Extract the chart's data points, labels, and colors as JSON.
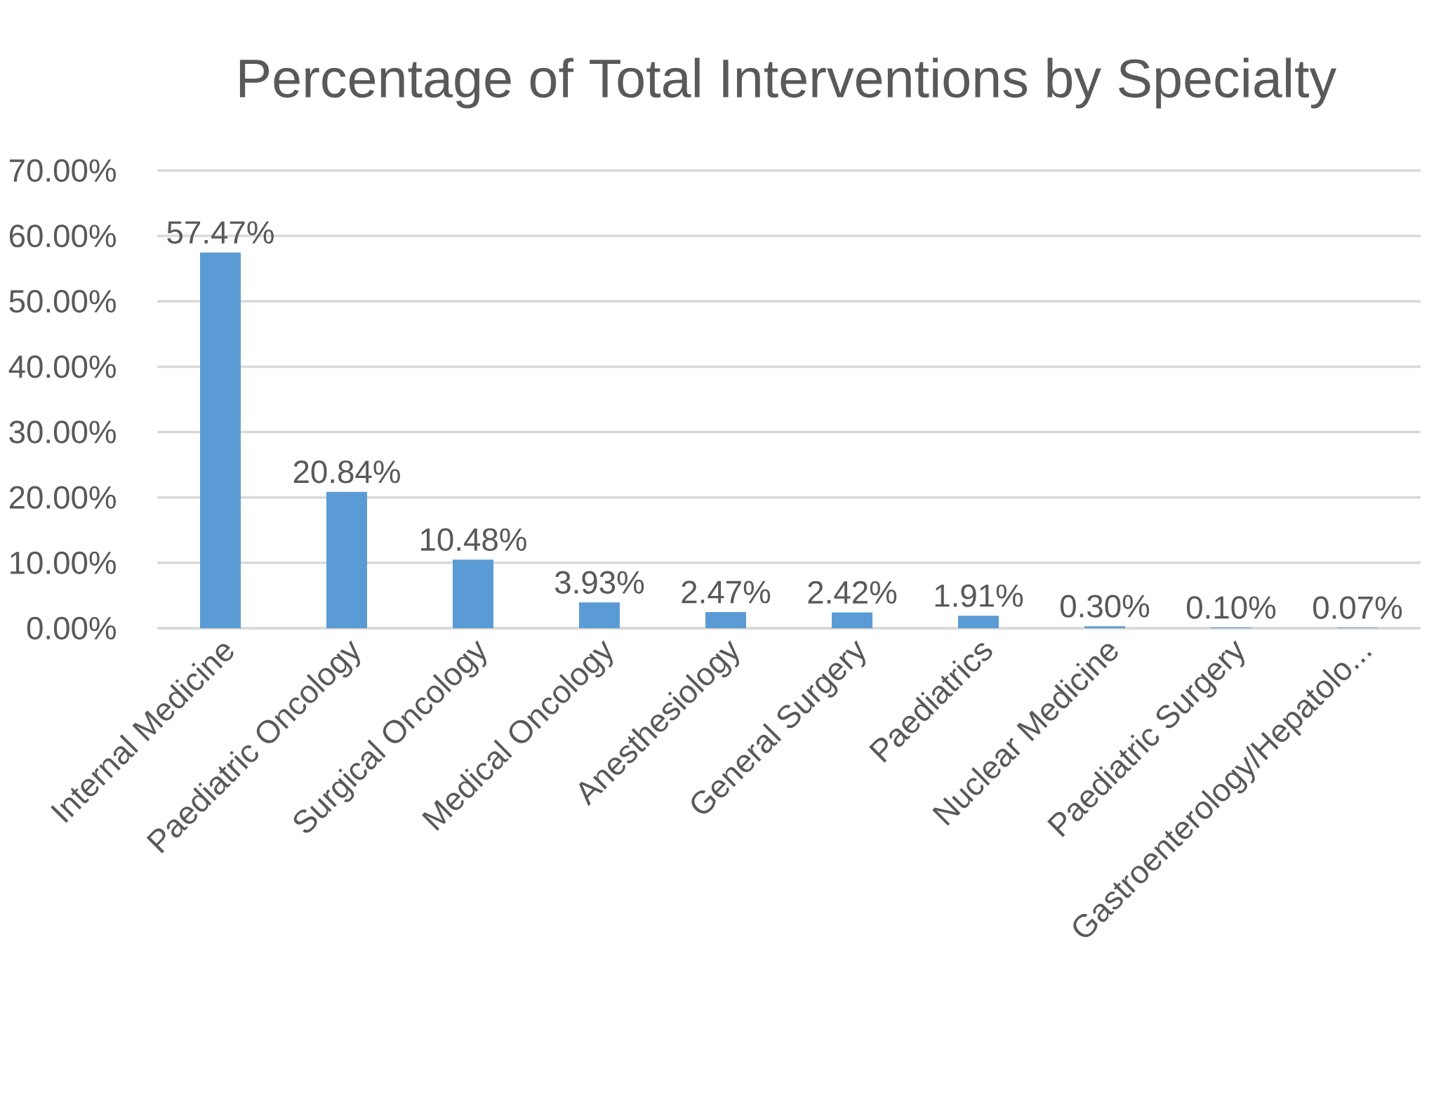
{
  "chart_data": {
    "type": "bar",
    "title": "Percentage of Total Interventions by Specialty",
    "categories": [
      "Internal Medicine",
      "Paediatric Oncology",
      "Surgical Oncology",
      "Medical Oncology",
      "Anesthesiology",
      "General Surgery",
      "Paediatrics",
      "Nuclear Medicine",
      "Paediatric Surgery",
      "Gastroenterology/Hepatolo..."
    ],
    "values": [
      57.47,
      20.84,
      10.48,
      3.93,
      2.47,
      2.42,
      1.91,
      0.3,
      0.1,
      0.07
    ],
    "value_labels": [
      "57.47%",
      "20.84%",
      "10.48%",
      "3.93%",
      "2.47%",
      "2.42%",
      "1.91%",
      "0.30%",
      "0.10%",
      "0.07%"
    ],
    "color": "#5b9bd5",
    "ylim": [
      0,
      70
    ],
    "yticks": [
      {
        "value": 0,
        "label": "0.00%"
      },
      {
        "value": 10,
        "label": "10.00%"
      },
      {
        "value": 20,
        "label": "20.00%"
      },
      {
        "value": 30,
        "label": "30.00%"
      },
      {
        "value": 40,
        "label": "40.00%"
      },
      {
        "value": 50,
        "label": "50.00%"
      },
      {
        "value": 60,
        "label": "60.00%"
      },
      {
        "value": 70,
        "label": "70.00%"
      }
    ],
    "grid": "y"
  }
}
